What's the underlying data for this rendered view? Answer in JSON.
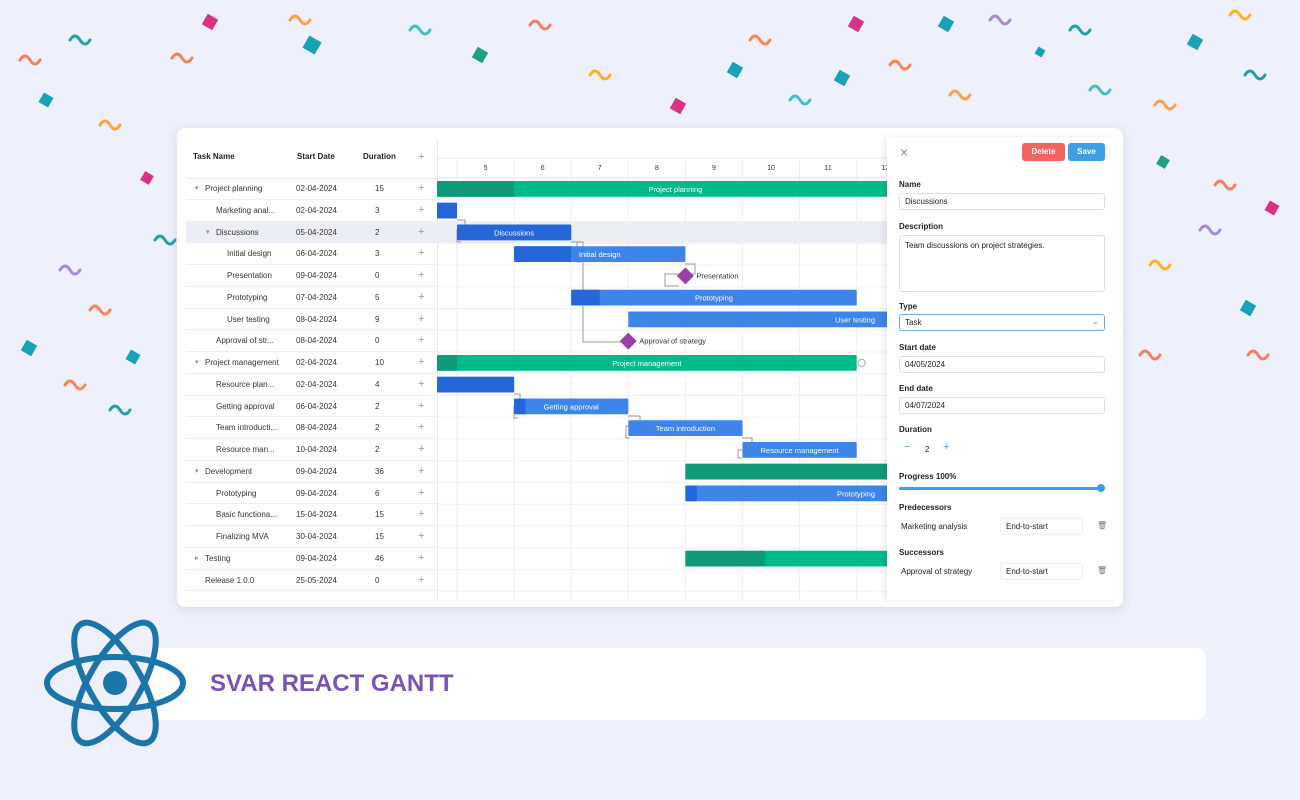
{
  "grid": {
    "columns": [
      "Task Name",
      "Start Date",
      "Duration"
    ],
    "rows": [
      {
        "name": "Project planning",
        "start": "02-04-2024",
        "duration": 15
      },
      {
        "name": "Marketing anal...",
        "start": "02-04-2024",
        "duration": 3
      },
      {
        "name": "Discussions",
        "start": "05-04-2024",
        "duration": 2
      },
      {
        "name": "Initial design",
        "start": "06-04-2024",
        "duration": 3
      },
      {
        "name": "Presentation",
        "start": "09-04-2024",
        "duration": 0
      },
      {
        "name": "Prototyping",
        "start": "07-04-2024",
        "duration": 5
      },
      {
        "name": "User testing",
        "start": "08-04-2024",
        "duration": 9
      },
      {
        "name": "Approval of str...",
        "start": "08-04-2024",
        "duration": 0
      },
      {
        "name": "Project management",
        "start": "02-04-2024",
        "duration": 10
      },
      {
        "name": "Resource plan...",
        "start": "02-04-2024",
        "duration": 4
      },
      {
        "name": "Getting approval",
        "start": "06-04-2024",
        "duration": 2
      },
      {
        "name": "Team introducti...",
        "start": "08-04-2024",
        "duration": 2
      },
      {
        "name": "Resource man...",
        "start": "10-04-2024",
        "duration": 2
      },
      {
        "name": "Development",
        "start": "09-04-2024",
        "duration": 36
      },
      {
        "name": "Prototyping",
        "start": "09-04-2024",
        "duration": 6
      },
      {
        "name": "Basic functiona...",
        "start": "15-04-2024",
        "duration": 15
      },
      {
        "name": "Finalizing MVA",
        "start": "30-04-2024",
        "duration": 15
      },
      {
        "name": "Testing",
        "start": "09-04-2024",
        "duration": 46
      },
      {
        "name": "Release 1.0.0",
        "start": "25-05-2024",
        "duration": 0
      }
    ]
  },
  "timeline": {
    "days": [
      5,
      6,
      7,
      8,
      9,
      10,
      11,
      12
    ],
    "labels": [
      "Project planning",
      "Discussions",
      "Initial design",
      "Presentation",
      "Prototyping",
      "User testing",
      "Approval of strategy",
      "Project management",
      "Getting approval",
      "Team introduction",
      "Resource management",
      "Prototyping"
    ]
  },
  "editor": {
    "delete": "Delete",
    "save": "Save",
    "name_label": "Name",
    "name": "Discussions",
    "description_label": "Description",
    "description": "Team discussions on project strategies.",
    "type_label": "Type",
    "type": "Task",
    "start_label": "Start date",
    "start": "04/05/2024",
    "end_label": "End date",
    "end": "04/07/2024",
    "duration_label": "Duration",
    "duration": 2,
    "progress_label": "Progress 100%",
    "predecessors_label": "Predecessors",
    "predecessor": {
      "task": "Marketing analysis",
      "link": "End-to-start"
    },
    "successors_label": "Successors",
    "successor": {
      "task": "Approval of strategy",
      "link": "End-to-start"
    }
  },
  "banner": {
    "title": "SVAR REACT GANTT"
  }
}
